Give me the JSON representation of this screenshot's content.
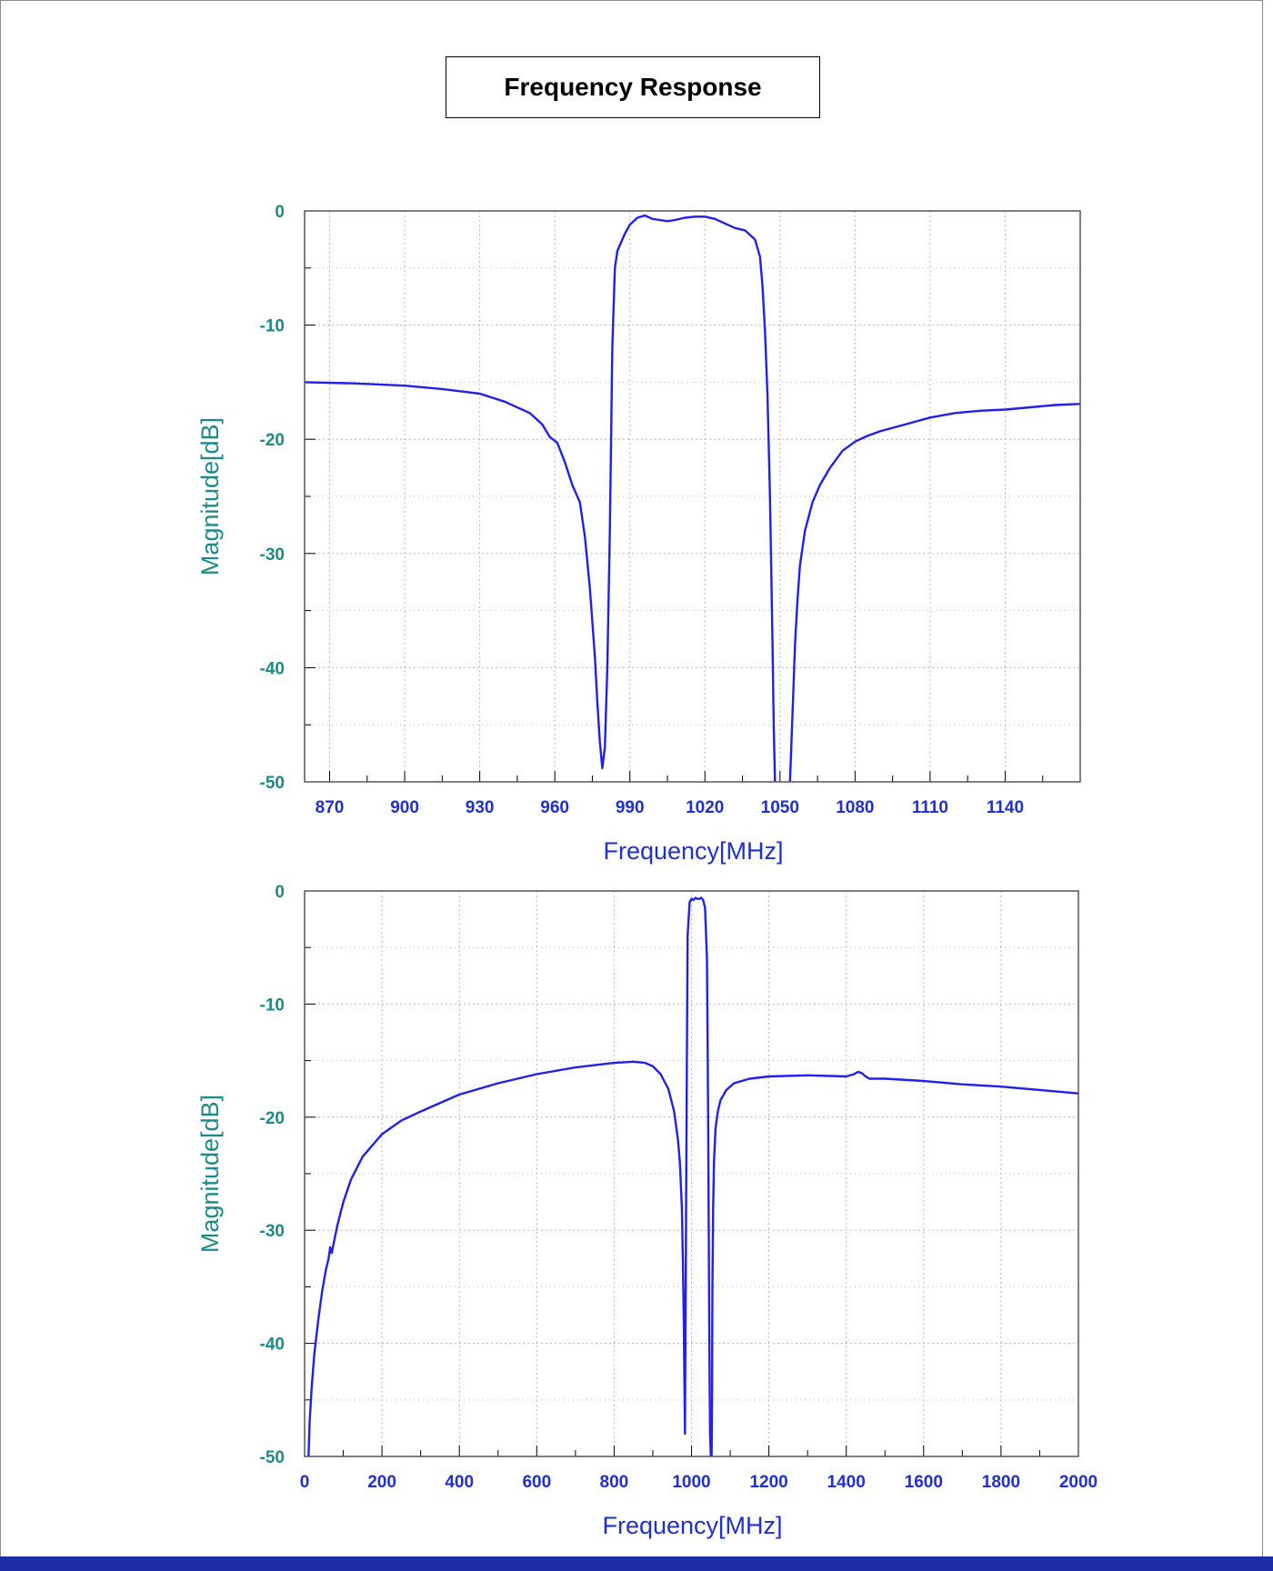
{
  "page": {
    "title": "Frequency Response"
  },
  "colors": {
    "line": "#1f1ff0",
    "y_text": "#1a8a8a",
    "x_text": "#1f2fd6",
    "grid": "#b8b8b8",
    "bottom_bar": "#1c2ea3"
  },
  "chart_data": [
    {
      "type": "line",
      "title": "",
      "xlabel": "Frequency[MHz]",
      "ylabel": "Magnitude[dB]",
      "xlim": [
        860,
        1170
      ],
      "ylim": [
        -50,
        0
      ],
      "xticks": [
        870,
        900,
        930,
        960,
        990,
        1020,
        1050,
        1080,
        1110,
        1140
      ],
      "yticks": [
        0,
        -10,
        -20,
        -30,
        -40,
        -50
      ],
      "grid": true,
      "series": [
        {
          "x": [
            860,
            880,
            900,
            915,
            930,
            940,
            950,
            955,
            958,
            961,
            964,
            967,
            970,
            972,
            974,
            976,
            977,
            978,
            979,
            980,
            981,
            982,
            983,
            984,
            985,
            986,
            988,
            990,
            993,
            996,
            999,
            1002,
            1005,
            1008,
            1012,
            1016,
            1020,
            1024,
            1028,
            1032,
            1036,
            1040,
            1042,
            1043,
            1044,
            1045,
            1046,
            1047,
            1047.5,
            1048
          ],
          "y": [
            -15,
            -15.1,
            -15.3,
            -15.6,
            -16,
            -16.7,
            -17.7,
            -18.7,
            -19.8,
            -20.3,
            -22,
            -24,
            -25.5,
            -28.5,
            -33,
            -39,
            -43,
            -46.5,
            -48.8,
            -47,
            -40,
            -28,
            -12,
            -5,
            -3.5,
            -3,
            -2,
            -1.2,
            -0.6,
            -0.4,
            -0.7,
            -0.8,
            -0.9,
            -0.8,
            -0.6,
            -0.5,
            -0.5,
            -0.7,
            -1.1,
            -1.5,
            -1.7,
            -2.5,
            -4,
            -6.5,
            -10.5,
            -16,
            -25,
            -38,
            -45,
            -50
          ]
        },
        {
          "x": [
            1054,
            1055,
            1056,
            1057,
            1058,
            1060,
            1063,
            1066,
            1070,
            1075,
            1080,
            1085,
            1090,
            1095,
            1100,
            1110,
            1120,
            1130,
            1140,
            1150,
            1160,
            1170
          ],
          "y": [
            -50,
            -44,
            -38,
            -34,
            -31,
            -28,
            -25.5,
            -24,
            -22.5,
            -21,
            -20.2,
            -19.7,
            -19.3,
            -19,
            -18.7,
            -18.1,
            -17.7,
            -17.5,
            -17.4,
            -17.2,
            -17,
            -16.9
          ]
        }
      ]
    },
    {
      "type": "line",
      "title": "",
      "xlabel": "Frequency[MHz]",
      "ylabel": "Magnitude[dB]",
      "xlim": [
        0,
        2000
      ],
      "ylim": [
        -50,
        0
      ],
      "xticks": [
        0,
        200,
        400,
        600,
        800,
        1000,
        1200,
        1400,
        1600,
        1800,
        2000
      ],
      "yticks": [
        0,
        -10,
        -20,
        -30,
        -40,
        -50
      ],
      "grid": true,
      "series": [
        {
          "x": [
            10,
            13,
            18,
            25,
            35,
            45,
            55,
            62,
            66,
            70,
            85,
            100,
            120,
            150,
            200,
            250,
            300,
            400,
            500,
            600,
            700,
            800,
            850,
            880,
            900,
            920,
            940,
            955,
            965,
            970,
            975,
            978,
            980,
            983,
            985,
            988,
            990,
            995,
            1000,
            1005,
            1010,
            1015,
            1020,
            1025,
            1030,
            1035,
            1040,
            1043,
            1046,
            1048,
            1050
          ],
          "y": [
            -50,
            -47,
            -44,
            -41,
            -38,
            -35.5,
            -33.5,
            -32.5,
            -31.5,
            -32,
            -29.5,
            -27.5,
            -25.5,
            -23.5,
            -21.5,
            -20.3,
            -19.5,
            -18,
            -17,
            -16.2,
            -15.6,
            -15.2,
            -15.1,
            -15.2,
            -15.5,
            -16.2,
            -17.5,
            -19.5,
            -22,
            -24,
            -28,
            -33,
            -38,
            -48,
            -35,
            -15,
            -4,
            -1,
            -0.7,
            -0.8,
            -0.6,
            -0.7,
            -0.7,
            -0.6,
            -0.8,
            -1.5,
            -6,
            -20,
            -40,
            -48,
            -50
          ]
        },
        {
          "x": [
            1052,
            1053,
            1054,
            1056,
            1058,
            1062,
            1068,
            1075,
            1090,
            1110,
            1150,
            1200,
            1300,
            1400,
            1420,
            1430,
            1440,
            1450,
            1460,
            1470,
            1500,
            1600,
            1700,
            1800,
            1900,
            2000
          ],
          "y": [
            -50,
            -45,
            -35,
            -28,
            -24,
            -21,
            -19.5,
            -18.5,
            -17.6,
            -17,
            -16.6,
            -16.4,
            -16.3,
            -16.4,
            -16.2,
            -16,
            -16.1,
            -16.4,
            -16.6,
            -16.6,
            -16.6,
            -16.8,
            -17.1,
            -17.3,
            -17.6,
            -17.9
          ]
        }
      ]
    }
  ]
}
